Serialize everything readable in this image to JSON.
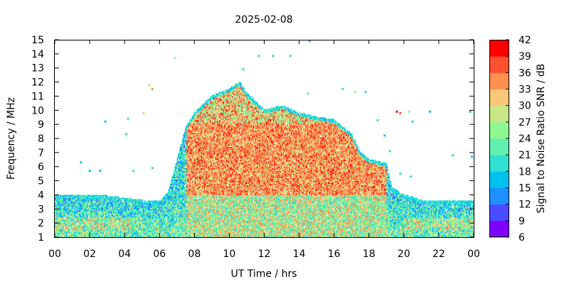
{
  "chart_data": {
    "type": "heatmap",
    "title": "2025-02-08",
    "xlabel": "UT Time / hrs",
    "ylabel": "Frequency / MHz",
    "colorbar_label": "Signal to Noise Ratio SNR / dB",
    "xlim": [
      0,
      24
    ],
    "ylim": [
      1,
      15
    ],
    "x_tick_labels": [
      "00",
      "02",
      "04",
      "06",
      "08",
      "10",
      "12",
      "14",
      "16",
      "18",
      "20",
      "22",
      "00"
    ],
    "y_ticks": [
      1,
      2,
      3,
      4,
      5,
      6,
      7,
      8,
      9,
      10,
      11,
      12,
      13,
      14,
      15
    ],
    "colorbar_ticks": [
      6,
      9,
      12,
      15,
      18,
      21,
      24,
      27,
      30,
      33,
      36,
      39,
      42
    ],
    "colorbar_range": [
      6,
      42
    ],
    "colorbar_colors": [
      "#8000ff",
      "#4a4aff",
      "#1e90ff",
      "#00c0ee",
      "#30e0d0",
      "#60f0b0",
      "#90f890",
      "#c8e888",
      "#f8c878",
      "#ff9050",
      "#ff5030",
      "#ff0000"
    ],
    "grid": false,
    "legend": "colorbar-right",
    "coverage_profile": [
      {
        "t": 0,
        "fmax": 4.0
      },
      {
        "t": 3,
        "fmax": 3.9
      },
      {
        "t": 5,
        "fmax": 3.6
      },
      {
        "t": 6,
        "fmax": 3.5
      },
      {
        "t": 6.5,
        "fmax": 4.2
      },
      {
        "t": 7,
        "fmax": 6.5
      },
      {
        "t": 7.5,
        "fmax": 8.8
      },
      {
        "t": 8,
        "fmax": 9.8
      },
      {
        "t": 9,
        "fmax": 11.0
      },
      {
        "t": 10,
        "fmax": 11.5
      },
      {
        "t": 10.6,
        "fmax": 12.0
      },
      {
        "t": 11,
        "fmax": 11.2
      },
      {
        "t": 12,
        "fmax": 10.0
      },
      {
        "t": 13,
        "fmax": 10.3
      },
      {
        "t": 14,
        "fmax": 9.8
      },
      {
        "t": 15,
        "fmax": 9.5
      },
      {
        "t": 16,
        "fmax": 9.3
      },
      {
        "t": 17,
        "fmax": 8.3
      },
      {
        "t": 17.5,
        "fmax": 7.0
      },
      {
        "t": 18,
        "fmax": 6.5
      },
      {
        "t": 19,
        "fmax": 6.2
      },
      {
        "t": 19.3,
        "fmax": 4.5
      },
      {
        "t": 20,
        "fmax": 4.0
      },
      {
        "t": 21,
        "fmax": 3.6
      },
      {
        "t": 24,
        "fmax": 3.5
      }
    ],
    "peak_snr_region": {
      "t_start": 7.5,
      "t_end": 19.0,
      "f_start": 4.0,
      "f_end": 9.0,
      "snr": 40
    },
    "sparse_points": [
      {
        "t": 13.5,
        "f": 13.85,
        "snr": 18
      },
      {
        "t": 11.7,
        "f": 13.85,
        "snr": 18
      },
      {
        "t": 12.5,
        "f": 13.85,
        "snr": 18
      },
      {
        "t": 10.8,
        "f": 12.9,
        "snr": 18
      },
      {
        "t": 6.9,
        "f": 13.7,
        "snr": 24
      },
      {
        "t": 5.4,
        "f": 11.8,
        "snr": 27
      },
      {
        "t": 5.6,
        "f": 11.5,
        "snr": 33
      },
      {
        "t": 5.1,
        "f": 9.8,
        "snr": 30
      },
      {
        "t": 4.2,
        "f": 9.4,
        "snr": 18
      },
      {
        "t": 2.9,
        "f": 9.2,
        "snr": 15
      },
      {
        "t": 4.1,
        "f": 8.3,
        "snr": 18
      },
      {
        "t": 1.5,
        "f": 6.3,
        "snr": 15
      },
      {
        "t": 2.0,
        "f": 5.7,
        "snr": 15
      },
      {
        "t": 2.6,
        "f": 5.7,
        "snr": 15
      },
      {
        "t": 4.5,
        "f": 5.7,
        "snr": 18
      },
      {
        "t": 5.6,
        "f": 5.9,
        "snr": 18
      },
      {
        "t": 17.2,
        "f": 11.3,
        "snr": 24
      },
      {
        "t": 17.8,
        "f": 11.3,
        "snr": 18
      },
      {
        "t": 14.5,
        "f": 11.2,
        "snr": 21
      },
      {
        "t": 16.5,
        "f": 11.5,
        "snr": 18
      },
      {
        "t": 19.6,
        "f": 9.9,
        "snr": 40
      },
      {
        "t": 19.8,
        "f": 9.8,
        "snr": 36
      },
      {
        "t": 20.3,
        "f": 9.9,
        "snr": 24
      },
      {
        "t": 21.5,
        "f": 9.9,
        "snr": 15
      },
      {
        "t": 23.8,
        "f": 9.9,
        "snr": 15
      },
      {
        "t": 18.5,
        "f": 9.3,
        "snr": 18
      },
      {
        "t": 20.5,
        "f": 9.2,
        "snr": 18
      },
      {
        "t": 18.9,
        "f": 8.2,
        "snr": 15
      },
      {
        "t": 19.2,
        "f": 7.1,
        "snr": 18
      },
      {
        "t": 22.8,
        "f": 6.8,
        "snr": 18
      },
      {
        "t": 23.9,
        "f": 6.7,
        "snr": 15
      },
      {
        "t": 19.8,
        "f": 5.5,
        "snr": 18
      },
      {
        "t": 20.4,
        "f": 5.3,
        "snr": 18
      },
      {
        "t": 14.6,
        "f": 14.9,
        "snr": 15
      }
    ]
  }
}
